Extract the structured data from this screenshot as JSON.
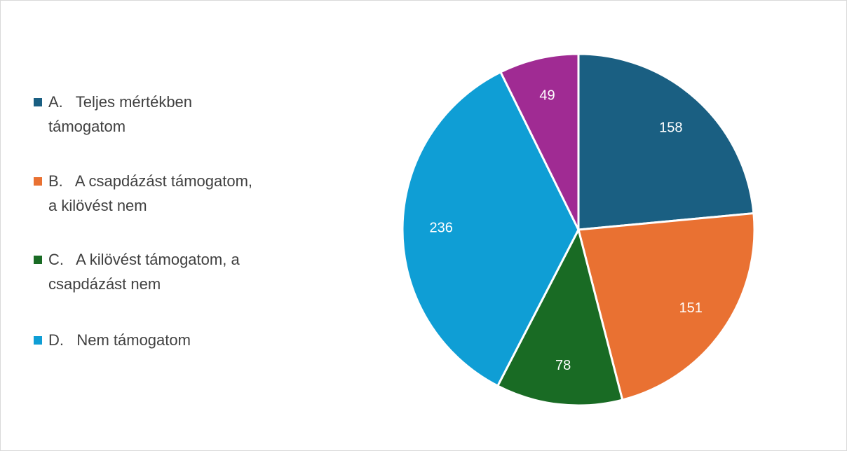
{
  "chart_data": {
    "type": "pie",
    "categories": [
      "A.   Teljes mértékben támogatom",
      "B.   A csapdázást támogatom, a kilövést nem",
      "C.   A kilövést támogatom, a csapdázást nem",
      "D.   Nem támogatom",
      null
    ],
    "values": [
      158,
      151,
      78,
      236,
      49
    ],
    "colors": [
      "#1a5f82",
      "#e97132",
      "#196b24",
      "#0f9ed5",
      "#a02b93"
    ],
    "legend": "left"
  }
}
